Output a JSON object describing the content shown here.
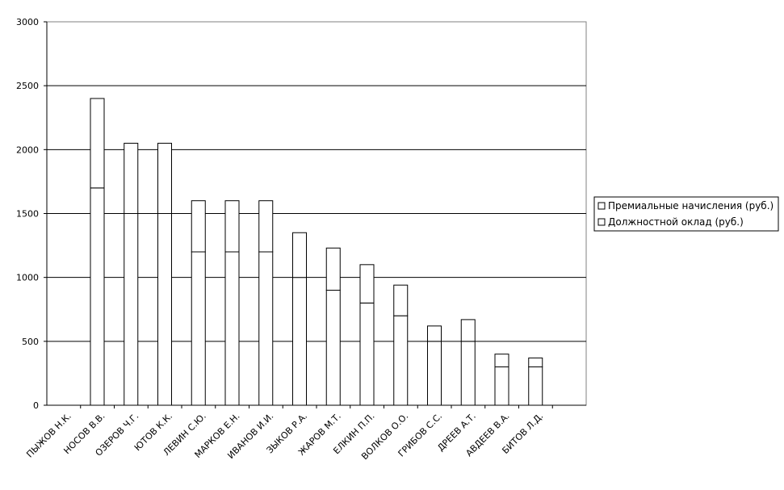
{
  "chart_data": {
    "type": "bar",
    "stacked": true,
    "categories": [
      "ПЫЖОВ Н.К.",
      "НОСОВ В.В.",
      "ОЗЕРОВ Ч.Г.",
      "ЮТОВ К.К.",
      "ЛЕВИН С.Ю.",
      "МАРКОВ Е.Н.",
      "ИВАНОВ И.И.",
      "ЗЫКОВ Р.А.",
      "ЖАРОВ М.Т.",
      "ЕЛКИН П.П.",
      "ВОЛКОВ О.О.",
      "ГРИБОВ С.С.",
      "ДРЕЕВ А.Т.",
      "АВДЕЕВ В.А.",
      "БИТОВ Л.Д."
    ],
    "series": [
      {
        "name": "Должностной оклад (руб.)",
        "values": [
          0,
          1700,
          1500,
          1500,
          1200,
          1200,
          1200,
          1000,
          900,
          800,
          700,
          500,
          500,
          300,
          300
        ]
      },
      {
        "name": "Премиальные начисления (руб.)",
        "values": [
          0,
          700,
          550,
          550,
          400,
          400,
          400,
          350,
          330,
          300,
          240,
          120,
          170,
          100,
          70
        ]
      }
    ],
    "ylim": [
      0,
      3000
    ],
    "yticks": [
      "0",
      "500",
      "1000",
      "1500",
      "2000",
      "2500",
      "3000"
    ],
    "grid": true,
    "legend": {
      "position": "right",
      "entries": [
        "Премиальные начисления (руб.)",
        "Должностной оклад (руб.)"
      ]
    },
    "colors": {
      "bar_fill": "#ffffff",
      "bar_stroke": "#000000",
      "grid": "#000000"
    }
  }
}
